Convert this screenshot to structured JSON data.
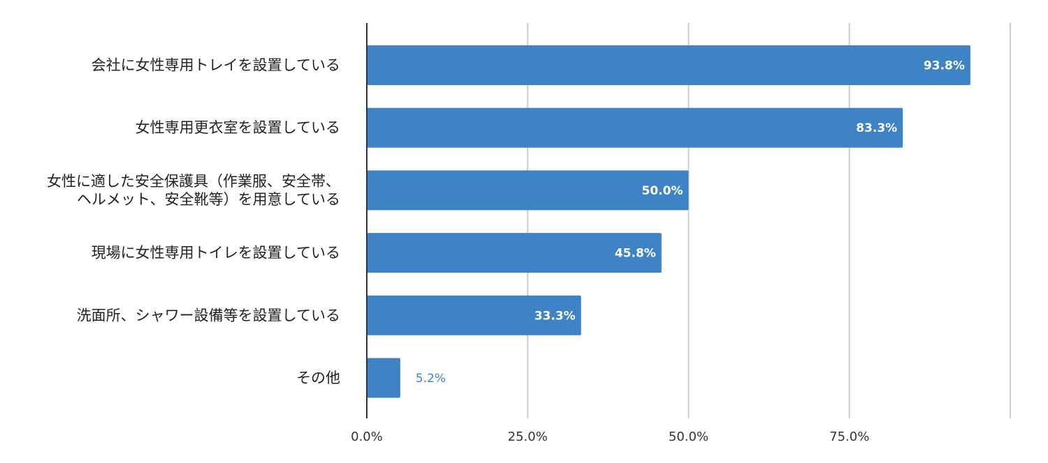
{
  "chart_data": {
    "type": "bar",
    "orientation": "horizontal",
    "title": "",
    "xlabel": "",
    "ylabel": "",
    "categories": [
      [
        "会社に女性専用トレイを設置している"
      ],
      [
        "女性専用更衣室を設置している"
      ],
      [
        "女性に適した安全保護具（作業服、安全帯、",
        "ヘルメット、安全靴等）を用意している"
      ],
      [
        "現場に女性専用トイレを設置している"
      ],
      [
        "洗面所、シャワー設備等を設置している"
      ],
      [
        "その他"
      ]
    ],
    "values": [
      93.8,
      83.3,
      50.0,
      45.8,
      33.3,
      5.2
    ],
    "value_labels": [
      "93.8%",
      "83.3%",
      "50.0%",
      "45.8%",
      "33.3%",
      "5.2%"
    ],
    "xlim": [
      0,
      100
    ],
    "ticks": [
      0,
      25,
      50,
      75,
      100
    ],
    "tick_labels": [
      "0.0%",
      "25.0%",
      "50.0%",
      "75.0%",
      ""
    ],
    "grid": true,
    "legend": "none",
    "colors": {
      "bar": "#3f83c7",
      "grid": "#cccccc",
      "axis": "#333333"
    }
  }
}
